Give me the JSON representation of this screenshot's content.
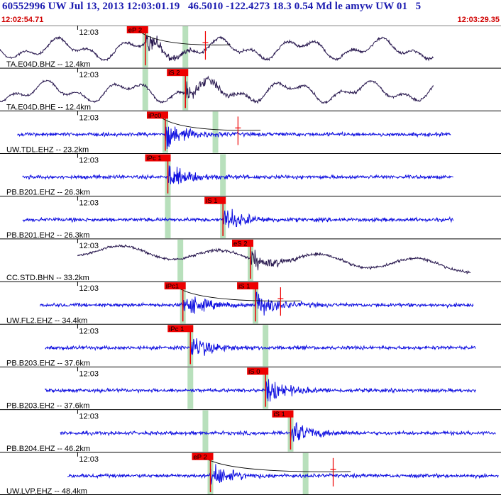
{
  "header": {
    "title": "60552996 UW Jul 13, 2013 12:03:01.19   46.5010 -122.4273 18.3 0.54 Md le amyw UW 01   5",
    "start_time": "12:02:54.71",
    "end_time": "12:03:29.35"
  },
  "colors": {
    "short_period": "#1010e0",
    "broadband": "#2a1a50",
    "pick_box": "#ee0000",
    "window": "#b8e0bc",
    "axis": "#000000"
  },
  "chart_data": {
    "type": "seismogram",
    "time_range": [
      "12:02:54.71",
      "12:03:29.35"
    ],
    "tick_label": "12:03",
    "traces": [
      {
        "label": "TA.E04D.BHZ -- 12.4km",
        "kind": "broadband",
        "span": [
          0.0,
          0.865
        ],
        "picks": [
          {
            "label": "eP 2",
            "t": 0.29
          },
          {
            "label": "",
            "t": 0.41
          }
        ],
        "windows": [
          0.29,
          0.37
        ],
        "curve": true
      },
      {
        "label": "TA.E04D.BHE -- 12.4km",
        "kind": "broadband",
        "span": [
          0.0,
          0.865
        ],
        "picks": [
          {
            "label": "iS 2",
            "t": 0.37
          }
        ],
        "windows": [
          0.29,
          0.37
        ]
      },
      {
        "label": "UW.TDL.EHZ -- 23.2km",
        "kind": "short",
        "span": [
          0.035,
          0.9
        ],
        "picks": [
          {
            "label": "iPc0",
            "t": 0.33
          },
          {
            "label": "",
            "t": 0.475
          }
        ],
        "windows": [
          0.33,
          0.43
        ],
        "curve": true
      },
      {
        "label": "PB.B201.EHZ -- 26.3km",
        "kind": "short",
        "span": [
          0.045,
          0.905
        ],
        "picks": [
          {
            "label": "iPc 1",
            "t": 0.335
          }
        ],
        "windows": [
          0.335,
          0.445
        ]
      },
      {
        "label": "PB.B201.EH2 -- 26.3km",
        "kind": "short",
        "span": [
          0.045,
          0.905
        ],
        "picks": [
          {
            "label": "iS 1",
            "t": 0.445
          }
        ],
        "windows": [
          0.335,
          0.445
        ]
      },
      {
        "label": "CC.STD.BHN -- 33.2km",
        "kind": "broadband",
        "span": [
          0.155,
          0.94
        ],
        "picks": [
          {
            "label": "eS 2",
            "t": 0.5
          }
        ],
        "windows": [
          0.36,
          0.5
        ]
      },
      {
        "label": "UW.FL2.EHZ -- 34.4km",
        "kind": "short",
        "span": [
          0.08,
          0.945
        ],
        "picks": [
          {
            "label": "iPc1",
            "t": 0.365
          },
          {
            "label": "iS 1",
            "t": 0.51
          },
          {
            "label": "",
            "t": 0.56
          }
        ],
        "windows": [
          0.365,
          0.51
        ],
        "curve": true
      },
      {
        "label": "PB.B203.EHZ -- 37.6km",
        "kind": "short",
        "span": [
          0.09,
          0.95
        ],
        "picks": [
          {
            "label": "iPc 1",
            "t": 0.38
          }
        ],
        "windows": [
          0.38,
          0.53
        ]
      },
      {
        "label": "PB.B203.EH2 -- 37.6km",
        "kind": "short",
        "span": [
          0.09,
          0.95
        ],
        "picks": [
          {
            "label": "iS 0",
            "t": 0.53
          }
        ],
        "windows": [
          0.38,
          0.53
        ]
      },
      {
        "label": "PB.B204.EHZ -- 46.2km",
        "kind": "short",
        "span": [
          0.12,
          0.99
        ],
        "picks": [
          {
            "label": "iS 1",
            "t": 0.58
          }
        ],
        "windows": [
          0.41,
          0.58
        ]
      },
      {
        "label": "UW.LVP.EHZ -- 48.4km",
        "kind": "short",
        "span": [
          0.135,
          0.995
        ],
        "picks": [
          {
            "label": "eP 2",
            "t": 0.42
          },
          {
            "label": "",
            "t": 0.665
          }
        ],
        "windows": [
          0.42,
          0.61
        ],
        "curve": true
      }
    ]
  }
}
